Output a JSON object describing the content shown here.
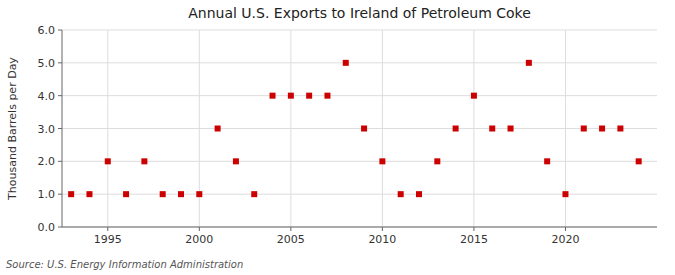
{
  "chart_data": {
    "type": "scatter",
    "title": "Annual U.S. Exports to Ireland of Petroleum Coke",
    "ylabel": "Thousand Barrels per Day",
    "annotations": [
      "Source: U.S. Energy Information Administration"
    ],
    "x": [
      1993,
      1994,
      1995,
      1996,
      1997,
      1998,
      1999,
      2000,
      2001,
      2002,
      2003,
      2004,
      2005,
      2006,
      2007,
      2008,
      2009,
      2010,
      2011,
      2012,
      2013,
      2014,
      2015,
      2016,
      2017,
      2018,
      2019,
      2020,
      2021,
      2022,
      2023,
      2024
    ],
    "values": [
      1,
      1,
      2,
      1,
      2,
      1,
      1,
      1,
      3,
      2,
      1,
      4,
      4,
      4,
      4,
      5,
      3,
      2,
      1,
      1,
      2,
      3,
      4,
      3,
      3,
      5,
      2,
      1,
      3,
      3,
      3,
      2
    ],
    "color": "#cc0000",
    "marker": "square",
    "xlim": [
      1992.5,
      2025
    ],
    "xticks": [
      1995,
      2000,
      2005,
      2010,
      2015,
      2020
    ],
    "ylim": [
      0.0,
      6.0
    ],
    "yticks": [
      {
        "value": 0.0,
        "label": "0.0"
      },
      {
        "value": 1.0,
        "label": "1.0"
      },
      {
        "value": 2.0,
        "label": "2.0"
      },
      {
        "value": 3.0,
        "label": "3.0"
      },
      {
        "value": 4.0,
        "label": "4.0"
      },
      {
        "value": 5.0,
        "label": "5.0"
      },
      {
        "value": 6.0,
        "label": "6.0"
      }
    ],
    "grid": true
  }
}
